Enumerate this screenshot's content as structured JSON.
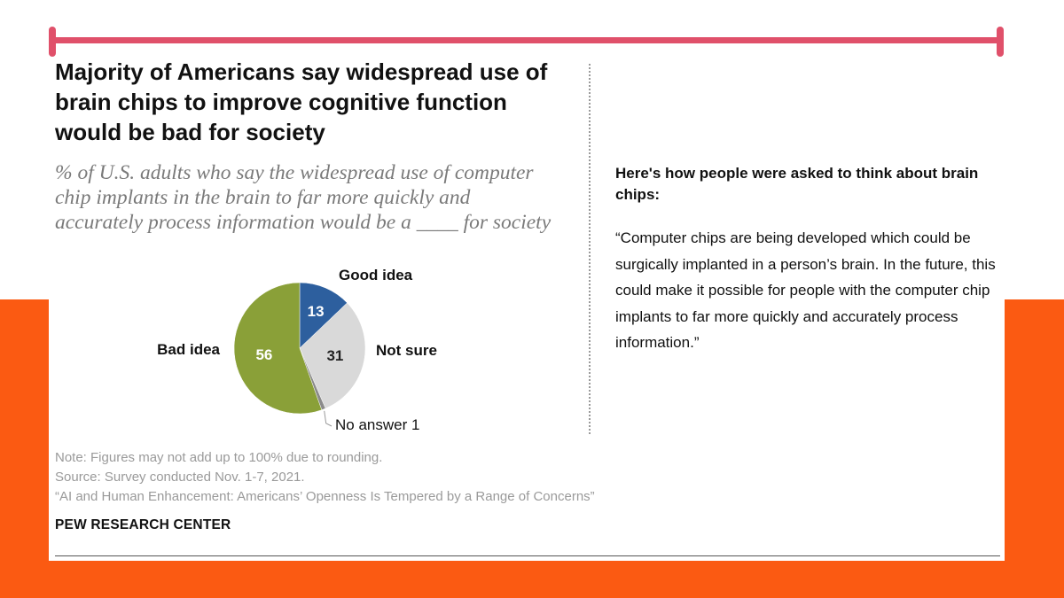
{
  "title": "Majority of Americans say widespread use of brain chips to improve cognitive function would be bad for society",
  "subtitle": "% of U.S. adults who say the widespread use of computer chip implants in the brain to far more quickly and accurately process information would be a ____ for society",
  "chart_data": {
    "type": "pie",
    "title": "Majority of Americans say widespread use of brain chips to improve cognitive function would be bad for society",
    "slices": [
      {
        "label": "Good idea",
        "value": 13,
        "value_label": "13",
        "color": "#2d5f9e",
        "value_text_color": "#ffffff"
      },
      {
        "label": "Not sure",
        "value": 31,
        "value_label": "31",
        "color": "#d9d9d9",
        "value_text_color": "#222222"
      },
      {
        "label": "No answer 1",
        "value": 1,
        "value_label": "",
        "color": "#8a8a8a",
        "value_text_color": "#222222"
      },
      {
        "label": "Bad idea",
        "value": 56,
        "value_label": "56",
        "color": "#8aa038",
        "value_text_color": "#ffffff"
      }
    ]
  },
  "context": {
    "heading": "Here's how people were asked to think about brain chips:",
    "quote": "“Computer chips are being developed which could be surgically implanted in a person’s brain. In the future, this could make it possible for people with the computer chip implants to far more quickly and accurately process information.”"
  },
  "footnotes": {
    "note": "Note: Figures may not add up to 100% due to rounding.",
    "source": "Source: Survey conducted Nov. 1-7, 2021.",
    "report": "“AI and Human Enhancement: Americans’ Openness Is Tempered by a Range of Concerns”"
  },
  "brand": "PEW RESEARCH CENTER",
  "colors": {
    "accent_bar": "#e0506a",
    "background_orange": "#fb5a12"
  }
}
